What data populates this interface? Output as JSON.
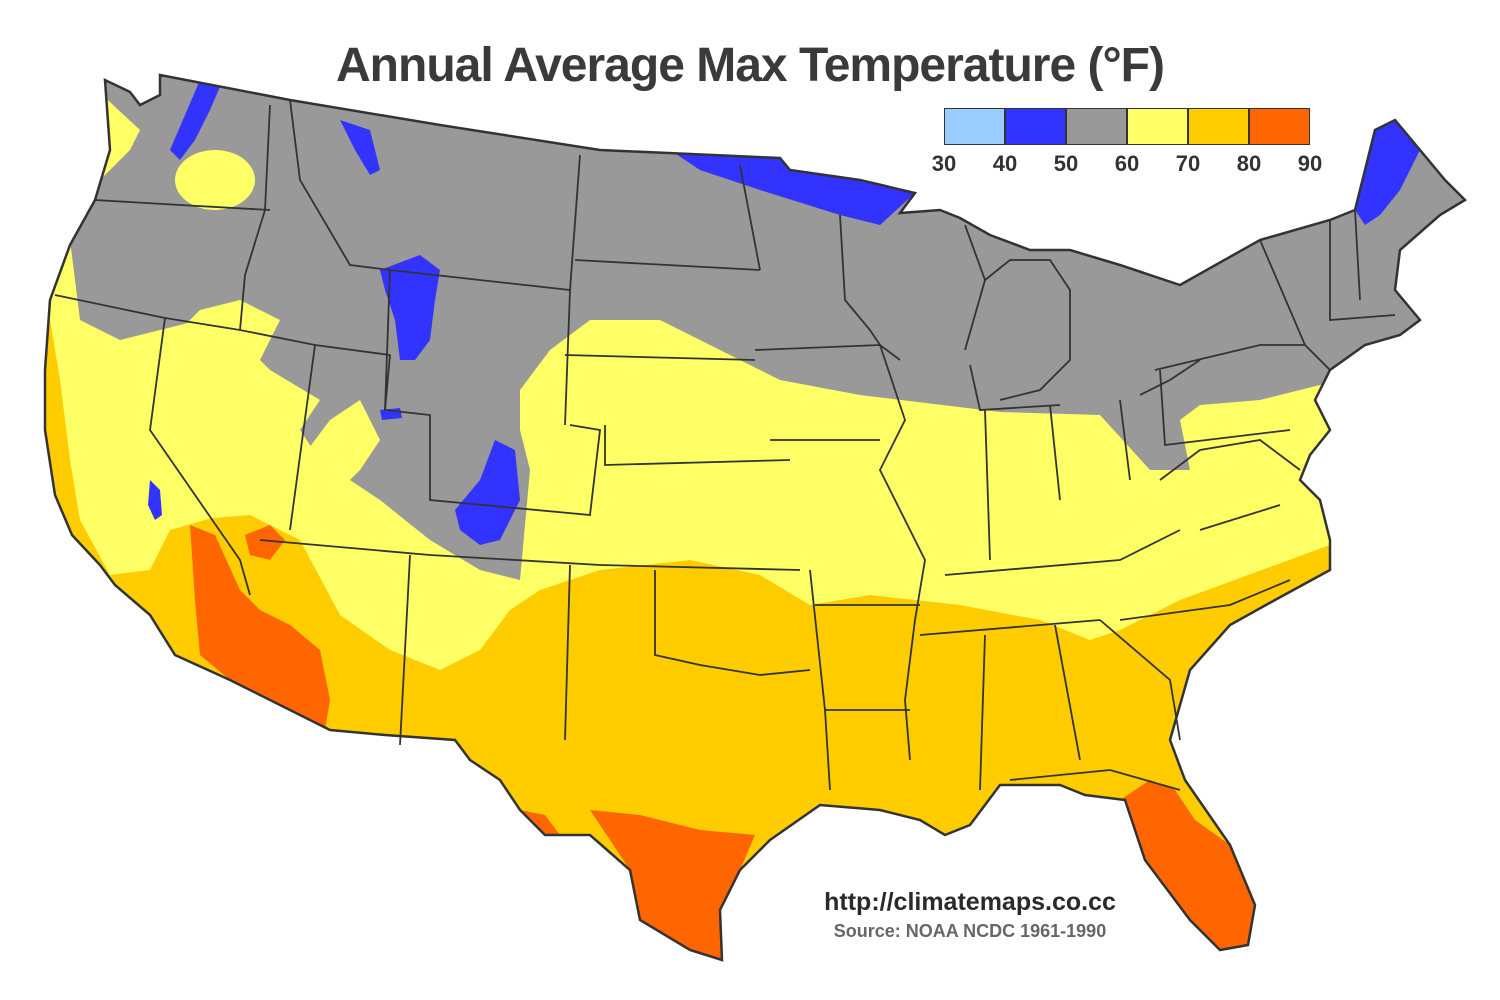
{
  "title": "Annual Average Max Temperature (°F)",
  "legend": {
    "bins": [
      {
        "from": 30,
        "to": 40,
        "color": "#99ccff"
      },
      {
        "from": 40,
        "to": 50,
        "color": "#3333ff"
      },
      {
        "from": 50,
        "to": 60,
        "color": "#999999"
      },
      {
        "from": 60,
        "to": 70,
        "color": "#ffff66"
      },
      {
        "from": 70,
        "to": 80,
        "color": "#ffcc00"
      },
      {
        "from": 80,
        "to": 90,
        "color": "#ff6600"
      }
    ],
    "tick_labels": [
      "30",
      "40",
      "50",
      "60",
      "70",
      "80",
      "90"
    ]
  },
  "source": {
    "url": "http://climatemaps.co.cc",
    "credit": "Source: NOAA NCDC 1961-1990"
  },
  "colors": {
    "state_border": "#333333",
    "background": "#ffffff"
  }
}
